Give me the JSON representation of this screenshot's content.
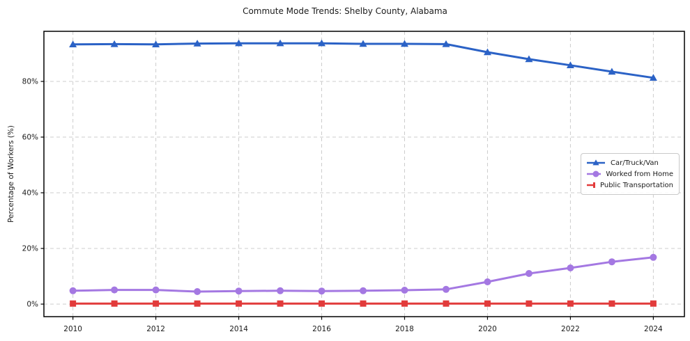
{
  "chart_data": {
    "type": "line",
    "title": "Commute Mode Trends: Shelby County, Alabama",
    "xlabel": "",
    "ylabel": "Percentage of Workers (%)",
    "x": [
      2010,
      2011,
      2012,
      2013,
      2014,
      2015,
      2016,
      2017,
      2018,
      2019,
      2020,
      2021,
      2022,
      2023,
      2024
    ],
    "xticks": [
      2010,
      2012,
      2014,
      2016,
      2018,
      2020,
      2022,
      2024
    ],
    "yticks": [
      0,
      20,
      40,
      60,
      80
    ],
    "ytick_labels": [
      "0%",
      "20%",
      "40%",
      "60%",
      "80%"
    ],
    "xlim": [
      2009.3,
      2024.75
    ],
    "ylim": [
      -4.5,
      98
    ],
    "grid": true,
    "grid_color": "#cccccc",
    "axis_color": "#000000",
    "legend_position": "center-right",
    "series": [
      {
        "name": "Car/Truck/Van",
        "color": "#2b62c6",
        "marker": "triangle",
        "values": [
          93.3,
          93.4,
          93.3,
          93.6,
          93.7,
          93.7,
          93.7,
          93.5,
          93.5,
          93.4,
          90.5,
          88.0,
          85.8,
          83.5,
          81.3
        ]
      },
      {
        "name": "Worked from Home",
        "color": "#a478e2",
        "marker": "circle",
        "values": [
          4.8,
          5.1,
          5.1,
          4.5,
          4.7,
          4.8,
          4.7,
          4.8,
          5.0,
          5.3,
          8.0,
          11.0,
          13.0,
          15.2,
          16.8
        ]
      },
      {
        "name": "Public Transportation",
        "color": "#e23b3b",
        "marker": "square",
        "values": [
          0.2,
          0.2,
          0.2,
          0.2,
          0.2,
          0.2,
          0.2,
          0.2,
          0.2,
          0.2,
          0.2,
          0.2,
          0.2,
          0.2,
          0.2
        ]
      }
    ]
  }
}
